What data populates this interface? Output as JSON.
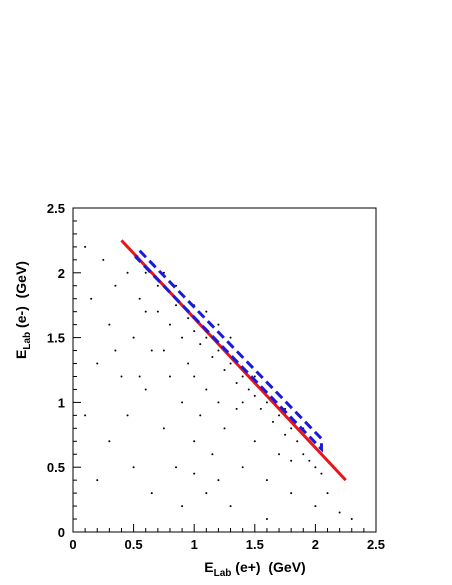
{
  "chart_data": {
    "type": "scatter",
    "x_label": {
      "main": "E",
      "sub": "Lab",
      "rest": " (e+)  (GeV)"
    },
    "y_label": {
      "main": "E",
      "sub": "Lab",
      "rest": " (e-)  (GeV)"
    },
    "xlim": [
      0,
      2.5
    ],
    "ylim": [
      0,
      2.5
    ],
    "xticks": [
      0,
      0.5,
      1,
      1.5,
      2,
      2.5
    ],
    "yticks": [
      0,
      0.5,
      1,
      1.5,
      2,
      2.5
    ],
    "series": [
      {
        "style": "points",
        "color": "#000000",
        "x": [
          0.1,
          0.15,
          0.2,
          0.1,
          0.25,
          0.3,
          0.3,
          0.35,
          0.4,
          0.45,
          0.5,
          0.5,
          0.55,
          0.6,
          0.6,
          0.65,
          0.7,
          0.7,
          0.75,
          0.75,
          0.8,
          0.8,
          0.85,
          0.85,
          0.9,
          0.9,
          0.95,
          0.95,
          1.0,
          1.0,
          1.0,
          1.05,
          1.05,
          1.1,
          1.1,
          1.1,
          1.15,
          1.15,
          1.2,
          1.2,
          1.25,
          1.25,
          1.3,
          1.3,
          1.35,
          1.35,
          1.4,
          1.4,
          1.45,
          1.5,
          1.5,
          1.55,
          1.6,
          1.6,
          1.65,
          1.7,
          1.7,
          1.75,
          1.8,
          1.8,
          1.85,
          1.9,
          1.95,
          2.0,
          2.0,
          2.05,
          2.1,
          2.2,
          2.3,
          1.6,
          0.9,
          0.6,
          0.75,
          0.65,
          1.0,
          1.2,
          1.4,
          1.0,
          0.45,
          0.2,
          1.5,
          1.75,
          1.9,
          0.85,
          1.1,
          1.3,
          0.55,
          0.35,
          1.2,
          1.8
        ],
        "values": [
          2.2,
          1.8,
          1.3,
          0.9,
          2.1,
          1.6,
          0.7,
          1.9,
          1.2,
          2.0,
          1.5,
          0.5,
          1.8,
          2.0,
          1.1,
          0.3,
          1.7,
          1.9,
          1.4,
          0.8,
          1.6,
          1.2,
          1.75,
          0.5,
          1.5,
          1.0,
          1.65,
          1.3,
          1.55,
          0.7,
          1.2,
          1.45,
          0.9,
          1.5,
          1.1,
          0.3,
          1.35,
          0.6,
          1.4,
          1.0,
          1.25,
          0.8,
          1.3,
          0.2,
          1.15,
          0.95,
          1.2,
          0.5,
          1.1,
          1.05,
          0.7,
          0.95,
          1.0,
          0.4,
          0.85,
          0.9,
          0.6,
          0.75,
          0.8,
          0.3,
          0.7,
          0.6,
          0.55,
          0.5,
          0.2,
          0.45,
          0.3,
          0.15,
          0.1,
          0.1,
          0.2,
          1.7,
          2.0,
          1.4,
          1.75,
          1.6,
          1.0,
          0.45,
          0.9,
          0.4,
          1.2,
          0.95,
          0.8,
          1.9,
          1.7,
          1.5,
          1.2,
          1.4,
          0.4,
          0.55
        ]
      },
      {
        "style": "line",
        "color": "#e8141a",
        "x": [
          0.4,
          2.25
        ],
        "values": [
          2.25,
          0.4
        ]
      },
      {
        "style": "dashed",
        "color": "#1a1adb",
        "x": [
          0.55,
          2.05,
          2.05,
          0.52,
          0.55
        ],
        "values": [
          2.17,
          0.72,
          0.64,
          2.12,
          2.17
        ]
      }
    ]
  }
}
